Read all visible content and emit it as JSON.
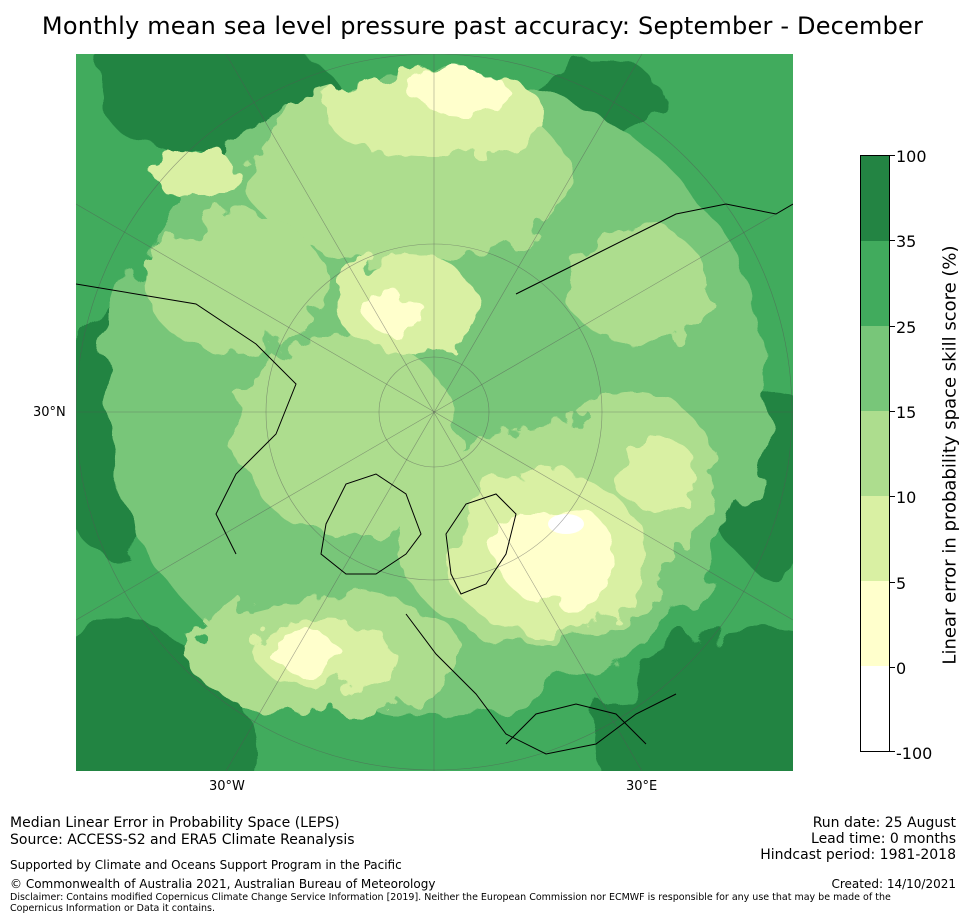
{
  "title": "Monthly mean sea level pressure past accuracy: September - December",
  "map": {
    "lat_labels": [
      "30°N"
    ],
    "lon_labels": [
      "30°W",
      "30°E"
    ],
    "projection": "north-polar-stereographic"
  },
  "colorbar": {
    "label": "Linear error in probability space skill score (%)",
    "ticks": [
      "100",
      "35",
      "25",
      "15",
      "10",
      "5",
      "0",
      "-100"
    ],
    "bins": [
      {
        "range": "35 to 100",
        "color": "#238443"
      },
      {
        "range": "25 to 35",
        "color": "#41ab5d"
      },
      {
        "range": "15 to 25",
        "color": "#78c679"
      },
      {
        "range": "10 to 15",
        "color": "#addd8e"
      },
      {
        "range": "5 to 10",
        "color": "#d9f0a3"
      },
      {
        "range": "0 to 5",
        "color": "#ffffcc"
      },
      {
        "range": "-100 to 0",
        "color": "#ffffff"
      }
    ]
  },
  "footer": {
    "metric": "Median Linear Error in Probability Space (LEPS)",
    "source": "Source: ACCESS-S2 and ERA5 Climate Reanalysis",
    "support": "Supported by Climate and Oceans Support Program in the Pacific",
    "copyright": "© Commonwealth of Australia 2021, Australian Bureau of Meteorology",
    "disclaimer": "Disclaimer: Contains modified Copernicus Climate Change Service Information [2019]. Neither the European Commission nor ECMWF is responsible for any use that may be made of the Copernicus Information or Data it contains.",
    "run_date": "Run date: 25 August",
    "lead_time": "Lead time: 0 months",
    "hindcast": "Hindcast period: 1981-2018",
    "created": "Created: 14/10/2021"
  }
}
